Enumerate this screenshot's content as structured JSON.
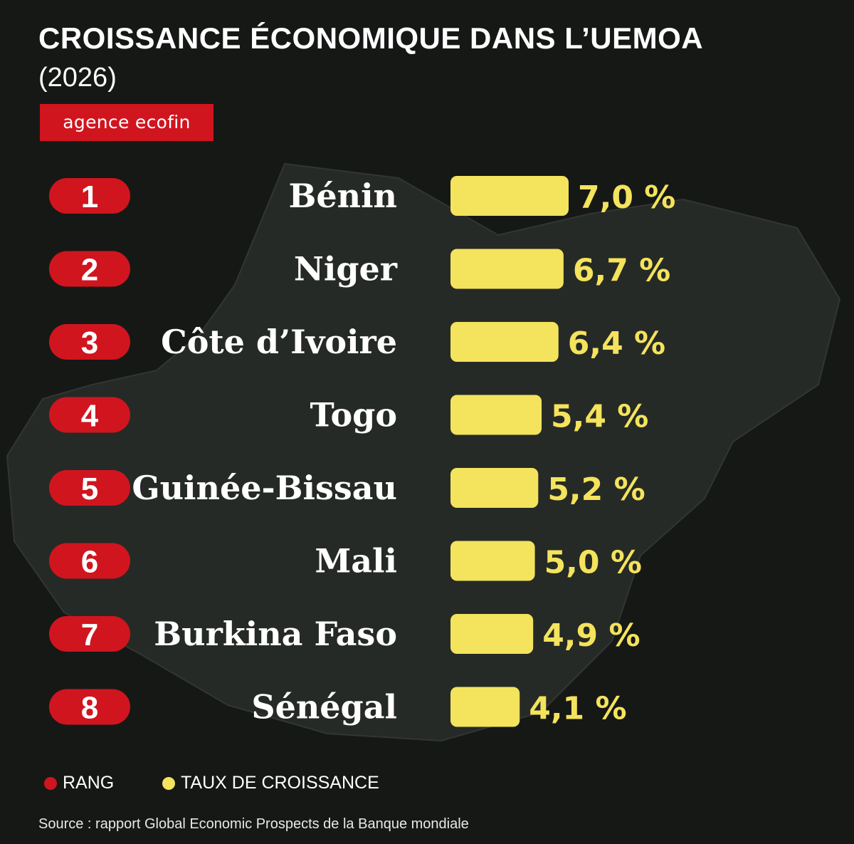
{
  "header": {
    "title": "CROISSANCE ÉCONOMIQUE DANS L’UEMOA",
    "subtitle": "(2026)",
    "brand": "agence ecofin"
  },
  "legend": {
    "rank_label": "RANG",
    "rate_label": "TAUX DE CROISSANCE"
  },
  "footer": {
    "source": "Source : rapport Global Economic Prospects de la Banque mondiale"
  },
  "colors": {
    "background": "#161816",
    "rank_badge": "#d0151f",
    "bar": "#f4e35c",
    "value_text": "#f4e35c"
  },
  "chart_data": {
    "type": "bar",
    "orientation": "horizontal",
    "title": "CROISSANCE ÉCONOMIQUE DANS L’UEMOA",
    "subtitle": "(2026)",
    "categories": [
      "Bénin",
      "Niger",
      "Côte d’Ivoire",
      "Togo",
      "Guinée-Bissau",
      "Mali",
      "Burkina Faso",
      "Sénégal"
    ],
    "ranks": [
      "1",
      "2",
      "3",
      "4",
      "5",
      "6",
      "7",
      "8"
    ],
    "values": [
      7.0,
      6.7,
      6.4,
      5.4,
      5.2,
      5.0,
      4.9,
      4.1
    ],
    "value_labels": [
      "7,0 %",
      "6,7 %",
      "6,4 %",
      "5,4 %",
      "5,2 %",
      "5,0 %",
      "4,9 %",
      "4,1 %"
    ],
    "unit": "%",
    "legend": [
      "RANG",
      "TAUX DE CROISSANCE"
    ],
    "legend_position": "bottom-left",
    "grid": false
  }
}
